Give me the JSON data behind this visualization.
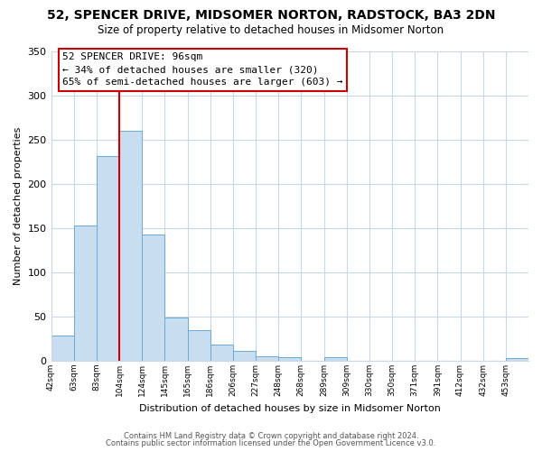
{
  "title": "52, SPENCER DRIVE, MIDSOMER NORTON, RADSTOCK, BA3 2DN",
  "subtitle": "Size of property relative to detached houses in Midsomer Norton",
  "xlabel": "Distribution of detached houses by size in Midsomer Norton",
  "ylabel": "Number of detached properties",
  "bar_color": "#c8ddf0",
  "bar_edge_color": "#6aaad4",
  "background_color": "#ffffff",
  "grid_color": "#c8d8e8",
  "tick_labels": [
    "42sqm",
    "63sqm",
    "83sqm",
    "104sqm",
    "124sqm",
    "145sqm",
    "165sqm",
    "186sqm",
    "206sqm",
    "227sqm",
    "248sqm",
    "268sqm",
    "289sqm",
    "309sqm",
    "330sqm",
    "350sqm",
    "371sqm",
    "391sqm",
    "412sqm",
    "432sqm",
    "453sqm"
  ],
  "bar_heights": [
    29,
    153,
    231,
    260,
    143,
    49,
    35,
    18,
    11,
    5,
    4,
    0,
    4,
    0,
    0,
    0,
    0,
    0,
    0,
    0,
    3
  ],
  "ylim": [
    0,
    350
  ],
  "yticks": [
    0,
    50,
    100,
    150,
    200,
    250,
    300,
    350
  ],
  "property_line_x": 3.0,
  "property_line_label": "52 SPENCER DRIVE: 96sqm",
  "annotation_line1": "← 34% of detached houses are smaller (320)",
  "annotation_line2": "65% of semi-detached houses are larger (603) →",
  "annotation_box_color": "#ffffff",
  "annotation_box_edge_color": "#cc0000",
  "property_line_color": "#cc0000",
  "footer_line1": "Contains HM Land Registry data © Crown copyright and database right 2024.",
  "footer_line2": "Contains public sector information licensed under the Open Government Licence v3.0."
}
